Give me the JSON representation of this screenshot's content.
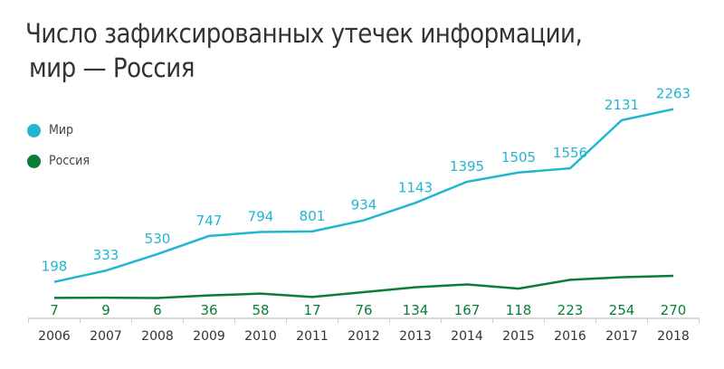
{
  "chart_data": {
    "type": "line",
    "title_line1": "Число зафиксированных утечек информации,",
    "title_line2": "мир — Россия",
    "x": [
      "2006",
      "2007",
      "2008",
      "2009",
      "2010",
      "2011",
      "2012",
      "2013",
      "2014",
      "2015",
      "2016",
      "2017",
      "2018"
    ],
    "series": [
      {
        "name": "Мир",
        "color": "#20b6d0",
        "values": [
          198,
          333,
          530,
          747,
          794,
          801,
          934,
          1143,
          1395,
          1505,
          1556,
          2131,
          2263
        ]
      },
      {
        "name": "Россия",
        "color": "#087f38",
        "values": [
          7,
          9,
          6,
          36,
          58,
          17,
          76,
          134,
          167,
          118,
          223,
          254,
          270
        ]
      }
    ],
    "legend_position": "top-left",
    "grid": false,
    "ylim": [
      0,
      2300
    ]
  }
}
